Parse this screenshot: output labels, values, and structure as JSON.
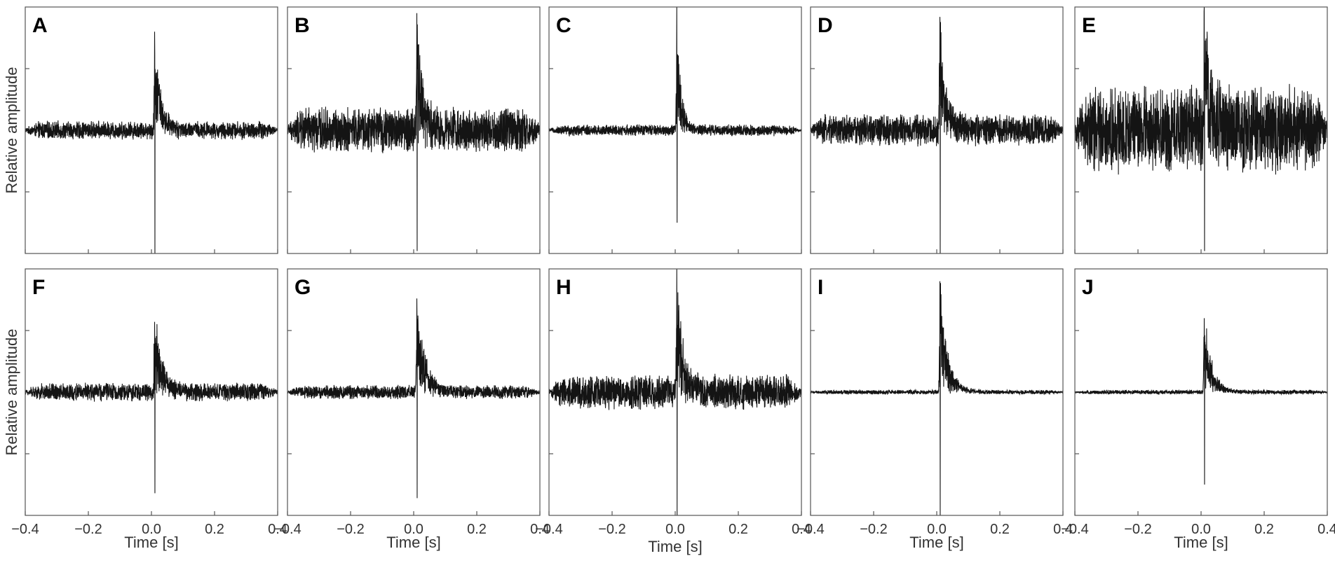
{
  "figure": {
    "ylabel": "Relative amplitude",
    "xlabel": "Time [s]",
    "xlim": [
      -0.4,
      0.4
    ],
    "xticks": [
      -0.4,
      -0.2,
      0.0,
      0.2,
      0.4
    ],
    "xtick_labels": [
      "−0.4",
      "−0.2",
      "0.0",
      "0.2",
      "0.4"
    ],
    "ylim": [
      -1,
      1
    ],
    "line_color": "#141414",
    "frame_color": "#555555"
  },
  "chart_data": [
    {
      "type": "line",
      "panel": "A",
      "xlim": [
        -0.4,
        0.4
      ],
      "ylim": [
        -1,
        1
      ],
      "noise_amplitude": 0.08,
      "burst_time": 0.01,
      "burst_peak_positive": 0.8,
      "burst_peak_negative": -1.0,
      "burst_decay_s": 0.02
    },
    {
      "type": "line",
      "panel": "B",
      "xlim": [
        -0.4,
        0.4
      ],
      "ylim": [
        -1,
        1
      ],
      "noise_amplitude": 0.2,
      "burst_time": 0.01,
      "burst_peak_positive": 0.95,
      "burst_peak_negative": -0.98,
      "burst_decay_s": 0.02
    },
    {
      "type": "line",
      "panel": "C",
      "xlim": [
        -0.4,
        0.4
      ],
      "ylim": [
        -1,
        1
      ],
      "noise_amplitude": 0.05,
      "burst_time": 0.005,
      "burst_peak_positive": 1.0,
      "burst_peak_negative": -0.75,
      "burst_decay_s": 0.015
    },
    {
      "type": "line",
      "panel": "D",
      "xlim": [
        -0.4,
        0.4
      ],
      "ylim": [
        -1,
        1
      ],
      "noise_amplitude": 0.14,
      "burst_time": 0.01,
      "burst_peak_positive": 0.92,
      "burst_peak_negative": -1.0,
      "burst_decay_s": 0.02
    },
    {
      "type": "line",
      "panel": "E",
      "xlim": [
        -0.4,
        0.4
      ],
      "ylim": [
        -1,
        1
      ],
      "noise_amplitude": 0.38,
      "burst_time": 0.01,
      "burst_peak_positive": 1.0,
      "burst_peak_negative": -0.98,
      "burst_decay_s": 0.02
    },
    {
      "type": "line",
      "panel": "F",
      "xlim": [
        -0.4,
        0.4
      ],
      "ylim": [
        -1,
        1
      ],
      "noise_amplitude": 0.08,
      "burst_time": 0.01,
      "burst_peak_positive": 0.57,
      "burst_peak_negative": -0.82,
      "burst_decay_s": 0.025
    },
    {
      "type": "line",
      "panel": "G",
      "xlim": [
        -0.4,
        0.4
      ],
      "ylim": [
        -1,
        1
      ],
      "noise_amplitude": 0.06,
      "burst_time": 0.01,
      "burst_peak_positive": 0.76,
      "burst_peak_negative": -0.86,
      "burst_decay_s": 0.025
    },
    {
      "type": "line",
      "panel": "H",
      "xlim": [
        -0.4,
        0.4
      ],
      "ylim": [
        -1,
        1
      ],
      "noise_amplitude": 0.15,
      "burst_time": 0.005,
      "burst_peak_positive": 1.0,
      "burst_peak_negative": -1.0,
      "burst_decay_s": 0.02
    },
    {
      "type": "line",
      "panel": "I",
      "xlim": [
        -0.4,
        0.4
      ],
      "ylim": [
        -1,
        1
      ],
      "noise_amplitude": 0.02,
      "burst_time": 0.01,
      "burst_peak_positive": 0.9,
      "burst_peak_negative": -1.0,
      "burst_decay_s": 0.025
    },
    {
      "type": "line",
      "panel": "J",
      "xlim": [
        -0.4,
        0.4
      ],
      "ylim": [
        -1,
        1
      ],
      "noise_amplitude": 0.02,
      "burst_time": 0.01,
      "burst_peak_positive": 0.6,
      "burst_peak_negative": -0.75,
      "burst_decay_s": 0.025
    }
  ]
}
